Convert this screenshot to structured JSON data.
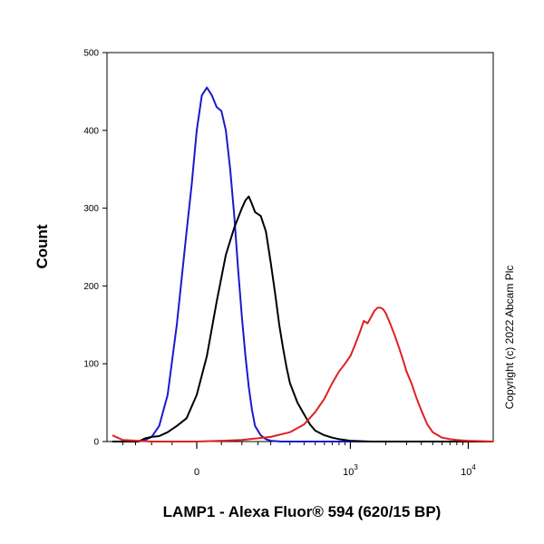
{
  "chart_data": {
    "type": "line",
    "title": "",
    "xlabel": "LAMP1 - Alexa Fluor® 594 (620/15 BP)",
    "ylabel": "Count",
    "x_scale": "biexponential",
    "x_ticks": [
      {
        "value": 0,
        "base": "0",
        "exp": ""
      },
      {
        "value": 1000,
        "base": "10",
        "exp": "3"
      },
      {
        "value": 10000,
        "base": "10",
        "exp": "4"
      }
    ],
    "xlim": [
      -250,
      50000
    ],
    "ylim": [
      0,
      500
    ],
    "y_ticks": [
      0,
      100,
      200,
      300,
      400,
      500
    ],
    "grid": false,
    "legend": "none",
    "series": [
      {
        "color": "#1a1acc",
        "x": [
          -250,
          -200,
          -150,
          -120,
          -100,
          -80,
          -60,
          -40,
          -20,
          -10,
          0,
          10,
          20,
          30,
          40,
          50,
          60,
          70,
          80,
          90,
          100,
          110,
          120,
          130,
          140,
          160,
          180,
          200,
          250,
          300,
          400,
          700,
          1500,
          5000,
          50000
        ],
        "y": [
          0,
          0,
          0,
          2,
          6,
          20,
          60,
          150,
          270,
          330,
          400,
          445,
          455,
          445,
          430,
          425,
          400,
          350,
          290,
          220,
          160,
          110,
          70,
          40,
          20,
          8,
          3,
          1,
          0,
          0,
          0,
          0,
          0,
          0,
          0
        ]
      },
      {
        "color": "#000000",
        "x": [
          -250,
          -140,
          -120,
          -100,
          -80,
          -60,
          -40,
          -20,
          0,
          20,
          40,
          60,
          80,
          100,
          110,
          120,
          130,
          140,
          160,
          180,
          200,
          220,
          240,
          260,
          280,
          300,
          350,
          400,
          450,
          500,
          600,
          700,
          800,
          900,
          1000,
          1500,
          3000,
          50000
        ],
        "y": [
          0,
          0,
          4,
          6,
          7,
          12,
          20,
          30,
          60,
          110,
          180,
          240,
          275,
          300,
          310,
          315,
          305,
          295,
          290,
          270,
          230,
          190,
          150,
          120,
          95,
          75,
          50,
          35,
          22,
          14,
          8,
          5,
          3,
          2,
          1,
          0,
          0,
          0
        ]
      },
      {
        "color": "#e02020",
        "x": [
          -250,
          -200,
          -100,
          0,
          100,
          200,
          300,
          400,
          500,
          600,
          700,
          800,
          900,
          1000,
          1100,
          1200,
          1300,
          1400,
          1500,
          1600,
          1700,
          1800,
          1900,
          2000,
          2200,
          2400,
          2600,
          2800,
          3000,
          3300,
          3600,
          4000,
          4500,
          5000,
          6000,
          7000,
          8000,
          10000,
          50000
        ],
        "y": [
          8,
          2,
          0,
          0,
          2,
          6,
          12,
          22,
          38,
          55,
          75,
          90,
          100,
          110,
          125,
          140,
          155,
          152,
          160,
          168,
          172,
          172,
          170,
          165,
          150,
          135,
          120,
          105,
          90,
          75,
          58,
          40,
          22,
          12,
          5,
          3,
          2,
          1,
          0
        ]
      }
    ]
  },
  "copyright": "Copyright (c) 2022 Abcam Plc"
}
